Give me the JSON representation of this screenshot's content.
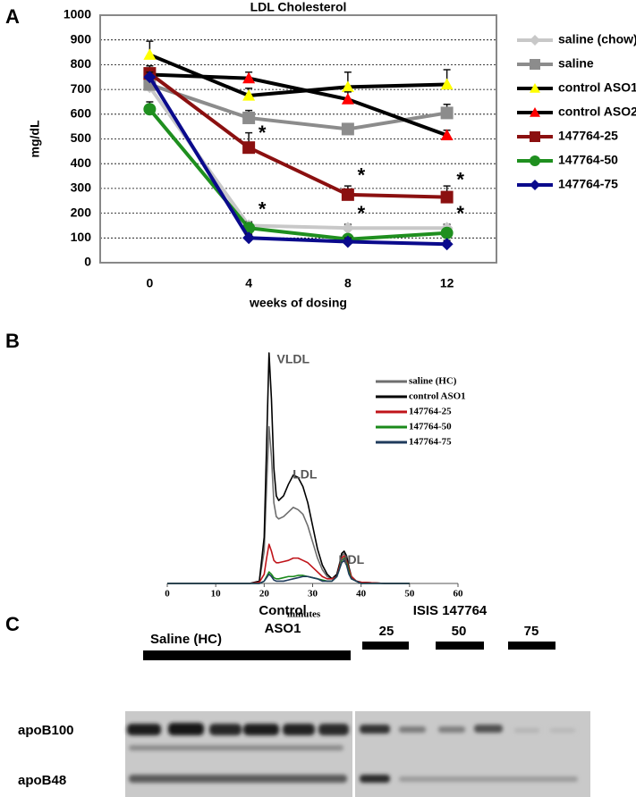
{
  "chart_data": [
    {
      "type": "line",
      "label": "A",
      "title": "LDL Cholesterol",
      "y_label": "mg/dL",
      "x_label": "weeks of dosing",
      "categories": [
        "0",
        "4",
        "8",
        "12"
      ],
      "ylim": [
        0,
        1000
      ],
      "yticks": [
        0,
        100,
        200,
        300,
        400,
        500,
        600,
        700,
        800,
        900,
        1000
      ],
      "grid": true,
      "series": [
        {
          "name": "saline (chow)",
          "color": "#c8c8c8",
          "line_color": "#c8c8c8",
          "marker": "diamond",
          "values": [
            710,
            150,
            140,
            140
          ],
          "errors": [
            20,
            15,
            15,
            15
          ]
        },
        {
          "name": "saline",
          "color": "#8c8c8c",
          "line_color": "#8c8c8c",
          "marker": "square",
          "values": [
            720,
            585,
            540,
            605
          ],
          "errors": [
            20,
            30,
            15,
            35
          ]
        },
        {
          "name": "control ASO1",
          "color": "#ffff00",
          "line_color": "#000000",
          "marker": "triangle",
          "values": [
            840,
            675,
            710,
            720
          ],
          "errors": [
            55,
            30,
            60,
            60
          ]
        },
        {
          "name": "control ASO2",
          "color": "#ff0000",
          "line_color": "#000000",
          "marker": "triangle",
          "values": [
            760,
            745,
            660,
            515
          ],
          "errors": [
            20,
            25,
            30,
            20
          ]
        },
        {
          "name": "147764-25",
          "color": "#8b1010",
          "line_color": "#8b1010",
          "marker": "square",
          "values": [
            765,
            465,
            275,
            265
          ],
          "errors": [
            30,
            60,
            35,
            45
          ]
        },
        {
          "name": "147764-50",
          "color": "#1f8f1f",
          "line_color": "#1f8f1f",
          "marker": "circle",
          "values": [
            620,
            140,
            95,
            120
          ],
          "errors": [
            30,
            20,
            15,
            15
          ]
        },
        {
          "name": "147764-75",
          "color": "#0a0a8c",
          "line_color": "#0a0a8c",
          "marker": "diamond",
          "values": [
            750,
            100,
            85,
            75
          ],
          "errors": [
            20,
            15,
            15,
            15
          ]
        }
      ],
      "annotations": [
        {
          "text": "*",
          "x": "4",
          "y": 520
        },
        {
          "text": "*",
          "x": "4",
          "y": 210
        },
        {
          "text": "*",
          "x": "8",
          "y": 347
        },
        {
          "text": "*",
          "x": "8",
          "y": 195
        },
        {
          "text": "*",
          "x": "12",
          "y": 330
        },
        {
          "text": "*",
          "x": "12",
          "y": 195
        }
      ]
    },
    {
      "type": "line",
      "label": "B",
      "x_label": "minutes",
      "xlim": [
        0,
        60
      ],
      "xticks": [
        0,
        10,
        20,
        30,
        40,
        50,
        60
      ],
      "ylim": [
        0,
        100
      ],
      "x": [
        0,
        10,
        17,
        19,
        20,
        20.5,
        21,
        21.5,
        22,
        22.5,
        23,
        24,
        25,
        26,
        27,
        28,
        29,
        30,
        31,
        32,
        33,
        34,
        35,
        35.5,
        36,
        36.5,
        37,
        37.5,
        38,
        39,
        40,
        45,
        50
      ],
      "series": [
        {
          "name": "saline (HC)",
          "color": "#6e6e6e",
          "values": [
            0,
            0,
            0,
            1,
            14,
            42,
            68,
            55,
            35,
            29,
            28,
            29,
            31,
            33,
            32,
            30,
            25,
            18,
            11,
            6,
            3,
            2,
            4,
            8,
            12,
            13,
            11,
            6,
            3,
            1,
            0.5,
            0,
            0
          ]
        },
        {
          "name": "control ASO1",
          "color": "#000000",
          "values": [
            0,
            0,
            0,
            1,
            20,
            60,
            100,
            80,
            50,
            38,
            36,
            38,
            43,
            47,
            46,
            42,
            35,
            25,
            15,
            8,
            4,
            2,
            4,
            8,
            13,
            14,
            12,
            7,
            3,
            1,
            0.5,
            0,
            0
          ]
        },
        {
          "name": "147764-25",
          "color": "#c0141a",
          "values": [
            0,
            0,
            0,
            0.5,
            4,
            11,
            17,
            14,
            10,
            9,
            9,
            9.5,
            10,
            11,
            11,
            10,
            9,
            7,
            5,
            3,
            2,
            2,
            3,
            7,
            11,
            12,
            10,
            6,
            3,
            1,
            0.5,
            0,
            0
          ]
        },
        {
          "name": "147764-50",
          "color": "#1a8a1a",
          "values": [
            0,
            0,
            0,
            0,
            1,
            3,
            5,
            4,
            2.5,
            2,
            2,
            2.5,
            3,
            3,
            3.5,
            3.5,
            3,
            2.5,
            2,
            1.5,
            1,
            1,
            3,
            6,
            10,
            11,
            9,
            5,
            2,
            1,
            0,
            0,
            0
          ]
        },
        {
          "name": "147764-75",
          "color": "#1f3b5c",
          "values": [
            0,
            0,
            0,
            0,
            1,
            2.5,
            4,
            3,
            1.5,
            1,
            1,
            1,
            1.5,
            2,
            2.5,
            3,
            3,
            2.5,
            2,
            1,
            1,
            1,
            3,
            6,
            9,
            10,
            8,
            4,
            2,
            1,
            0,
            0,
            0
          ]
        }
      ],
      "annotations": [
        {
          "text": "VLDL",
          "x": 26,
          "y": 97
        },
        {
          "text": "LDL",
          "x": 28.4,
          "y": 47
        },
        {
          "text": "HDL",
          "x": 38,
          "y": 10
        }
      ]
    }
  ],
  "blot": {
    "label": "C",
    "groups": [
      "Saline (HC)",
      [
        "Control",
        "ASO1"
      ],
      "ISIS 147764"
    ],
    "doses": [
      "25",
      "50",
      "75"
    ],
    "bands": [
      "apoB100",
      "apoB48"
    ]
  }
}
